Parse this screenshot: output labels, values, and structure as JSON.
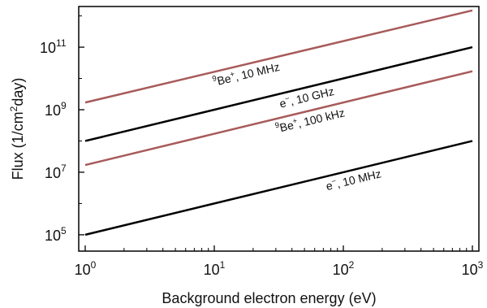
{
  "chart_data": {
    "type": "line",
    "x_scale": "log",
    "y_scale": "log",
    "xlim": [
      1,
      1000
    ],
    "ylim": [
      30000,
      2000000000000
    ],
    "xlabel": "Background electron energy (eV)",
    "ylabel": {
      "prefix": "Flux (1/cm",
      "sup": "2",
      "suffix": "day)"
    },
    "x_ticks": [
      {
        "value": 1,
        "base": "10",
        "exp": "0"
      },
      {
        "value": 10,
        "base": "10",
        "exp": "1"
      },
      {
        "value": 100,
        "base": "10",
        "exp": "2"
      },
      {
        "value": 1000,
        "base": "10",
        "exp": "3"
      }
    ],
    "y_ticks": [
      {
        "value": 100000,
        "base": "10",
        "exp": "5"
      },
      {
        "value": 10000000,
        "base": "10",
        "exp": "7"
      },
      {
        "value": 1000000000,
        "base": "10",
        "exp": "9"
      },
      {
        "value": 100000000000,
        "base": "10",
        "exp": "11"
      }
    ],
    "grid": false,
    "legend": "none",
    "series": [
      {
        "x": [
          1,
          1000
        ],
        "y": [
          1700000000,
          1500000000000
        ],
        "color": "#a85a5a",
        "label": {
          "pre": "",
          "sup1": "9",
          "mid": "Be",
          "sup2": "+",
          "post": ", 10 MHz",
          "at_x": 17
        }
      },
      {
        "x": [
          1,
          1000
        ],
        "y": [
          100000000,
          100000000000
        ],
        "color": "#000000",
        "label": {
          "pre": "",
          "sup1": "",
          "mid": "e",
          "sup2": "−",
          "post": ", 10 GHz",
          "at_x": 50
        }
      },
      {
        "x": [
          1,
          1000
        ],
        "y": [
          17000000,
          17000000000
        ],
        "color": "#a85a5a",
        "label": {
          "pre": "",
          "sup1": "9",
          "mid": "Be",
          "sup2": "+",
          "post": ", 100 kHz",
          "at_x": 53
        }
      },
      {
        "x": [
          1,
          1000
        ],
        "y": [
          100000,
          100000000
        ],
        "color": "#000000",
        "label": {
          "pre": "",
          "sup1": "",
          "mid": "e",
          "sup2": "−",
          "post": ", 10 MHz",
          "at_x": 115
        }
      }
    ]
  }
}
